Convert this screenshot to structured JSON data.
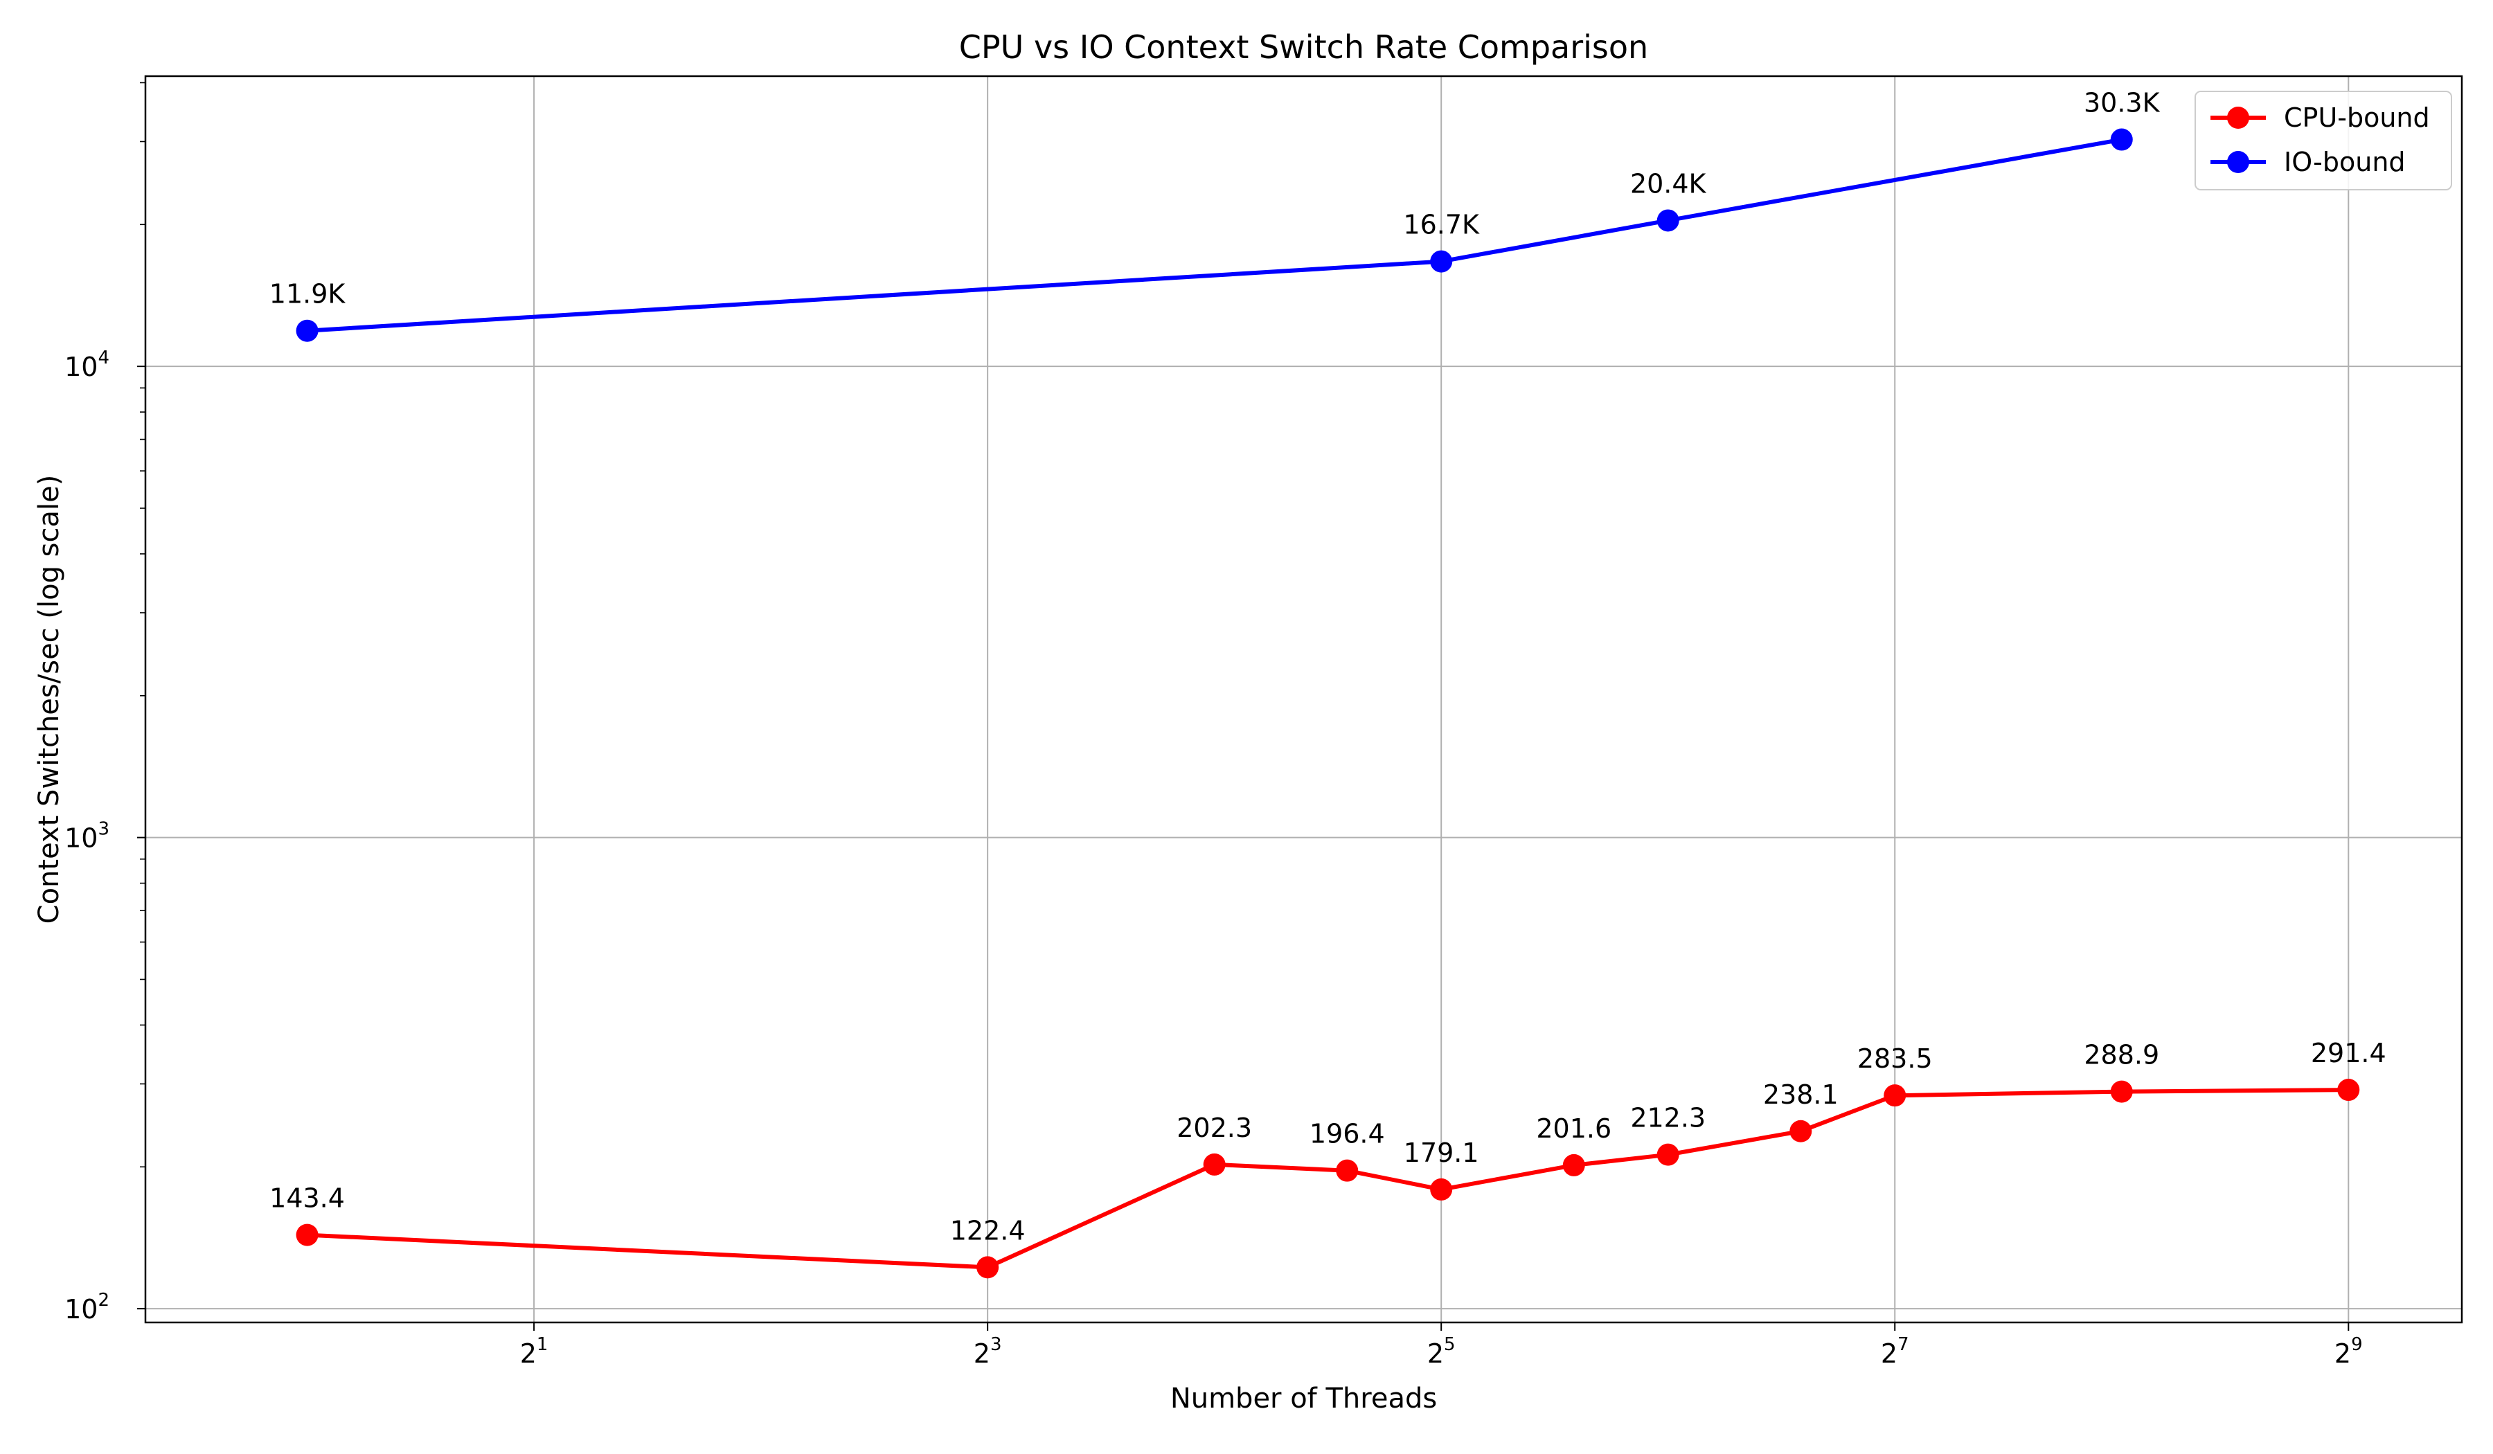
{
  "chart_data": {
    "type": "line",
    "title": "CPU vs IO Context Switch Rate Comparison",
    "xlabel": "Number of Threads",
    "ylabel": "Context Switches/sec (log scale)",
    "x_scale": "log2",
    "y_scale": "log10",
    "xlim": [
      0.61,
      724
    ],
    "ylim": [
      93.5,
      41300
    ],
    "x_ticks": [
      {
        "base": "2",
        "exp": "1",
        "value": 2
      },
      {
        "base": "2",
        "exp": "3",
        "value": 8
      },
      {
        "base": "2",
        "exp": "5",
        "value": 32
      },
      {
        "base": "2",
        "exp": "7",
        "value": 128
      },
      {
        "base": "2",
        "exp": "9",
        "value": 512
      }
    ],
    "y_ticks": [
      {
        "base": "10",
        "exp": "2",
        "value": 100
      },
      {
        "base": "10",
        "exp": "3",
        "value": 1000
      },
      {
        "base": "10",
        "exp": "4",
        "value": 10000
      }
    ],
    "grid": true,
    "legend_position": "top-right",
    "series": [
      {
        "name": "CPU-bound",
        "color": "#ff0000",
        "x": [
          1,
          8,
          16,
          24,
          32,
          48,
          64,
          96,
          128,
          256,
          512
        ],
        "y": [
          143.4,
          122.4,
          202.3,
          196.4,
          179.1,
          201.6,
          212.3,
          238.1,
          283.5,
          288.9,
          291.4
        ],
        "labels": [
          "143.4",
          "122.4",
          "202.3",
          "196.4",
          "179.1",
          "201.6",
          "212.3",
          "238.1",
          "283.5",
          "288.9",
          "291.4"
        ]
      },
      {
        "name": "IO-bound",
        "color": "#0000ff",
        "x": [
          1,
          32,
          64,
          256
        ],
        "y": [
          11900,
          16700,
          20400,
          30300
        ],
        "labels": [
          "11.9K",
          "16.7K",
          "20.4K",
          "30.3K"
        ]
      }
    ]
  }
}
